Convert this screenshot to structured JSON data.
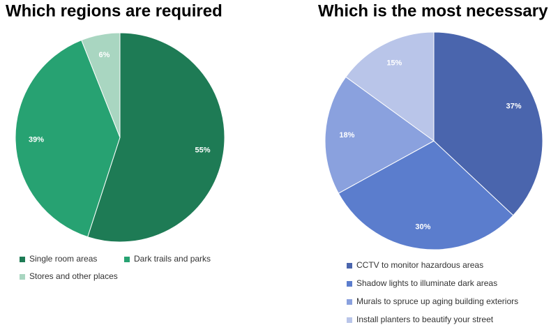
{
  "chart_data": [
    {
      "type": "pie",
      "title": "Which regions are required",
      "categories": [
        "Single room areas",
        "Dark trails and parks",
        "Stores and other places"
      ],
      "values": [
        55,
        39,
        6
      ],
      "value_labels": [
        "55%",
        "39%",
        "6%"
      ],
      "colors": [
        "#1e7b55",
        "#27a272",
        "#a9d6c1"
      ]
    },
    {
      "type": "pie",
      "title": "Which is the most necessary",
      "categories": [
        "CCTV to monitor hazardous areas",
        "Shadow lights to illuminate dark areas",
        "Murals to spruce up aging building exteriors",
        "Install planters to beautify your street"
      ],
      "values": [
        37,
        30,
        18,
        15
      ],
      "value_labels": [
        "37%",
        "30%",
        "18%",
        "15%"
      ],
      "colors": [
        "#4a65ad",
        "#5b7dcd",
        "#8aa1de",
        "#b9c5e9"
      ]
    }
  ]
}
